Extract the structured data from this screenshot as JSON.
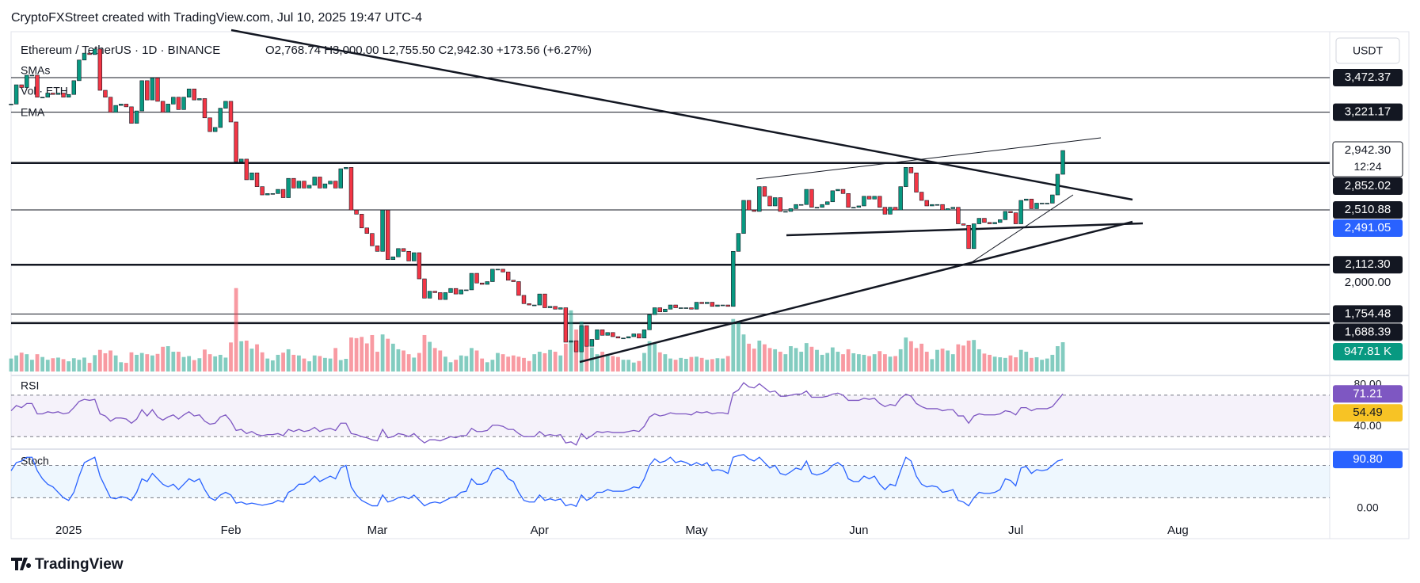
{
  "header": {
    "credit": "CryptoFXStreet created with TradingView.com, Jul 10, 2025 19:47 UTC-4",
    "currency": "USDT",
    "brand": "TradingView"
  },
  "chart_data": {
    "type": "candlestick",
    "symbol": "Ethereum / TetherUS · 1D · BINANCE",
    "ohlc_legend": "O2,768.74 H3,000.00 L2,755.50 C2,942.30 +173.56 (+6.27%)",
    "indicators": [
      "SMAs",
      "Vol · ETH",
      "EMA"
    ],
    "countdown": "12:24",
    "up_color": "#089981",
    "down_color": "#f23645",
    "xlim": [
      0,
      252
    ],
    "xticks": [
      {
        "value": 11,
        "label": "2025"
      },
      {
        "value": 42,
        "label": "Feb"
      },
      {
        "value": 70,
        "label": "Mar"
      },
      {
        "value": 101,
        "label": "Apr"
      },
      {
        "value": 131,
        "label": "May"
      },
      {
        "value": 162,
        "label": "Jun"
      },
      {
        "value": 192,
        "label": "Jul"
      },
      {
        "value": 223,
        "label": "Aug"
      }
    ],
    "ylim": [
      1308,
      3806
    ],
    "close": [
      3280,
      3420,
      3400,
      3490,
      3490,
      3330,
      3330,
      3360,
      3350,
      3360,
      3330,
      3350,
      3450,
      3600,
      3650,
      3640,
      3680,
      3380,
      3330,
      3220,
      3270,
      3280,
      3260,
      3140,
      3230,
      3450,
      3310,
      3470,
      3300,
      3220,
      3280,
      3330,
      3240,
      3330,
      3390,
      3310,
      3320,
      3180,
      3080,
      3110,
      3250,
      3300,
      3150,
      2860,
      2880,
      2730,
      2780,
      2680,
      2620,
      2630,
      2630,
      2660,
      2600,
      2740,
      2670,
      2720,
      2670,
      2690,
      2750,
      2670,
      2700,
      2720,
      2670,
      2810,
      2820,
      2510,
      2480,
      2380,
      2340,
      2250,
      2210,
      2510,
      2150,
      2170,
      2230,
      2210,
      2140,
      2200,
      2010,
      1870,
      1920,
      1910,
      1860,
      1910,
      1940,
      1900,
      1930,
      1930,
      2050,
      1980,
      1970,
      1990,
      2080,
      2080,
      2060,
      2000,
      1990,
      1890,
      1830,
      1820,
      1820,
      1900,
      1800,
      1810,
      1790,
      1800,
      1550,
      1560,
      1480,
      1670,
      1520,
      1570,
      1640,
      1600,
      1620,
      1590,
      1580,
      1580,
      1590,
      1610,
      1580,
      1640,
      1750,
      1800,
      1770,
      1790,
      1820,
      1800,
      1800,
      1800,
      1790,
      1840,
      1830,
      1840,
      1810,
      1820,
      1820,
      1810,
      2210,
      2340,
      2580,
      2510,
      2500,
      2680,
      2610,
      2540,
      2600,
      2500,
      2500,
      2520,
      2550,
      2550,
      2660,
      2530,
      2530,
      2550,
      2570,
      2650,
      2660,
      2630,
      2530,
      2530,
      2540,
      2610,
      2590,
      2610,
      2530,
      2480,
      2530,
      2510,
      2680,
      2820,
      2780,
      2640,
      2580,
      2540,
      2550,
      2550,
      2510,
      2520,
      2530,
      2410,
      2400,
      2230,
      2410,
      2450,
      2420,
      2410,
      2420,
      2440,
      2500,
      2490,
      2410,
      2580,
      2590,
      2520,
      2560,
      2560,
      2560,
      2620,
      2770,
      2942.3
    ],
    "volume": {
      "ylim": [
        0,
        4000
      ],
      "current_label": "947.81 K",
      "label_color": "#089981",
      "values": [
        420,
        520,
        610,
        560,
        380,
        560,
        470,
        380,
        430,
        450,
        400,
        330,
        430,
        380,
        450,
        280,
        530,
        700,
        590,
        680,
        520,
        300,
        280,
        620,
        540,
        600,
        560,
        520,
        570,
        800,
        820,
        640,
        640,
        470,
        500,
        370,
        430,
        710,
        560,
        490,
        540,
        450,
        940,
        2700,
        980,
        1000,
        740,
        880,
        620,
        420,
        360,
        540,
        610,
        720,
        540,
        520,
        420,
        330,
        520,
        500,
        440,
        420,
        760,
        370,
        410,
        1100,
        1080,
        1120,
        910,
        1180,
        640,
        1200,
        1060,
        900,
        720,
        680,
        560,
        450,
        600,
        1180,
        960,
        760,
        680,
        480,
        300,
        380,
        520,
        500,
        760,
        680,
        420,
        300,
        380,
        600,
        560,
        480,
        520,
        480,
        440,
        340,
        560,
        640,
        590,
        700,
        640,
        520,
        900,
        1980,
        1360,
        1620,
        1020,
        780,
        560,
        640,
        560,
        500,
        470,
        380,
        380,
        290,
        340,
        600,
        980,
        900,
        620,
        560,
        420,
        380,
        440,
        410,
        470,
        480,
        440,
        380,
        400,
        430,
        420,
        500,
        1700,
        1640,
        1200,
        900,
        740,
        1000,
        880,
        760,
        720,
        640,
        560,
        820,
        760,
        640,
        920,
        800,
        700,
        540,
        600,
        780,
        640,
        560,
        720,
        590,
        560,
        540,
        500,
        560,
        660,
        560,
        480,
        500,
        720,
        1100,
        980,
        760,
        900,
        640,
        400,
        700,
        740,
        680,
        560,
        880,
        840,
        1000,
        1020,
        720,
        580,
        540,
        480,
        460,
        440,
        520,
        460,
        700,
        640,
        440,
        460,
        380,
        420,
        540,
        820,
        947.81
      ]
    },
    "price_labels": [
      {
        "value": 3472.37,
        "label": "3,472.37",
        "bg": "#131722",
        "fg": "#ffffff",
        "line_width": 1
      },
      {
        "value": 3221.17,
        "label": "3,221.17",
        "bg": "#131722",
        "fg": "#ffffff",
        "line_width": 1
      },
      {
        "value": 2942.3,
        "label": "2,942.30",
        "bg": "#ffffff",
        "fg": "#131722",
        "line_width": 0
      },
      {
        "value": 2852.02,
        "label": "2,852.02",
        "bg": "#131722",
        "fg": "#ffffff",
        "line_width": 2.5
      },
      {
        "value": 2510.88,
        "label": "2,510.88",
        "bg": "#131722",
        "fg": "#ffffff",
        "line_width": 1
      },
      {
        "value": 2491.05,
        "label": "2,491.05",
        "bg": "#2962ff",
        "fg": "#ffffff",
        "line_width": 0
      },
      {
        "value": 2112.3,
        "label": "2,112.30",
        "bg": "#131722",
        "fg": "#ffffff",
        "line_width": 2.5
      },
      {
        "value": 2000,
        "label": "2,000.00",
        "bg": "transparent",
        "fg": "#131722",
        "line_width": 0
      },
      {
        "value": 1754.48,
        "label": "1,754.48",
        "bg": "#131722",
        "fg": "#ffffff",
        "line_width": 1
      },
      {
        "value": 1688.39,
        "label": "1,688.39",
        "bg": "#131722",
        "fg": "#ffffff",
        "line_width": 2.5
      }
    ],
    "rsi": {
      "name": "RSI",
      "color": "#7e57c2",
      "ma_color": "#f7c325",
      "ma_current": 54.49,
      "ylim": [
        18,
        89
      ],
      "band": [
        30,
        70
      ],
      "yticks": [
        {
          "value": 80,
          "label": "80.00"
        },
        {
          "value": 40,
          "label": "40.00"
        }
      ],
      "values": [
        55,
        60,
        58,
        62,
        62,
        52,
        52,
        54,
        53,
        54,
        52,
        53,
        58,
        64,
        66,
        65,
        66,
        52,
        50,
        45,
        48,
        48,
        47,
        43,
        47,
        56,
        50,
        56,
        49,
        46,
        49,
        51,
        47,
        51,
        54,
        50,
        51,
        45,
        42,
        43,
        49,
        51,
        45,
        36,
        37,
        33,
        35,
        32,
        31,
        32,
        32,
        33,
        31,
        37,
        35,
        37,
        35,
        36,
        39,
        35,
        37,
        38,
        36,
        43,
        43,
        33,
        32,
        30,
        29,
        27,
        26,
        37,
        29,
        30,
        33,
        32,
        30,
        33,
        28,
        24,
        27,
        27,
        26,
        28,
        30,
        29,
        31,
        31,
        38,
        35,
        35,
        36,
        41,
        41,
        40,
        37,
        37,
        33,
        30,
        30,
        30,
        35,
        31,
        32,
        31,
        32,
        24,
        25,
        22,
        33,
        28,
        31,
        35,
        34,
        35,
        34,
        34,
        34,
        35,
        36,
        35,
        40,
        49,
        52,
        50,
        51,
        53,
        52,
        52,
        52,
        51,
        54,
        53,
        54,
        52,
        53,
        53,
        52,
        72,
        75,
        82,
        78,
        77,
        81,
        77,
        73,
        74,
        69,
        69,
        70,
        71,
        71,
        74,
        68,
        68,
        68,
        69,
        71,
        72,
        70,
        65,
        65,
        65,
        67,
        66,
        67,
        62,
        59,
        61,
        60,
        67,
        71,
        69,
        62,
        59,
        57,
        57,
        57,
        55,
        56,
        56,
        50,
        50,
        43,
        50,
        52,
        51,
        51,
        51,
        52,
        55,
        54,
        51,
        58,
        58,
        55,
        57,
        57,
        57,
        59,
        65,
        71.21
      ]
    },
    "stoch": {
      "name": "Stoch",
      "color": "#2962ff",
      "ylim": [
        -25,
        110
      ],
      "band": [
        20,
        80
      ],
      "current": {
        "value": 90.8,
        "label": "90.80"
      },
      "yticks": [
        {
          "value": 0,
          "label": "0.00"
        }
      ],
      "values": [
        70,
        85,
        88,
        95,
        95,
        70,
        55,
        45,
        40,
        30,
        20,
        15,
        30,
        60,
        85,
        90,
        95,
        60,
        40,
        20,
        18,
        22,
        20,
        15,
        30,
        55,
        50,
        65,
        55,
        45,
        40,
        45,
        35,
        45,
        55,
        50,
        55,
        35,
        20,
        15,
        25,
        30,
        25,
        10,
        12,
        8,
        10,
        8,
        6,
        8,
        10,
        15,
        12,
        30,
        35,
        45,
        45,
        50,
        60,
        50,
        55,
        60,
        55,
        75,
        80,
        40,
        25,
        15,
        10,
        5,
        5,
        25,
        12,
        15,
        20,
        22,
        18,
        25,
        15,
        5,
        10,
        12,
        10,
        15,
        20,
        22,
        30,
        32,
        55,
        45,
        45,
        50,
        70,
        75,
        70,
        55,
        50,
        30,
        15,
        12,
        12,
        25,
        15,
        18,
        15,
        18,
        5,
        8,
        4,
        25,
        15,
        20,
        30,
        30,
        35,
        32,
        32,
        32,
        35,
        40,
        38,
        55,
        80,
        92,
        85,
        88,
        95,
        85,
        88,
        85,
        80,
        85,
        80,
        85,
        70,
        72,
        70,
        65,
        95,
        98,
        100,
        92,
        88,
        95,
        85,
        75,
        80,
        65,
        62,
        68,
        75,
        72,
        88,
        65,
        62,
        65,
        70,
        80,
        85,
        78,
        55,
        50,
        50,
        60,
        55,
        60,
        45,
        35,
        45,
        42,
        70,
        95,
        88,
        60,
        45,
        40,
        42,
        40,
        30,
        32,
        35,
        15,
        12,
        5,
        20,
        30,
        28,
        28,
        30,
        35,
        55,
        52,
        42,
        75,
        78,
        65,
        72,
        70,
        72,
        80,
        88,
        90.8
      ]
    }
  }
}
